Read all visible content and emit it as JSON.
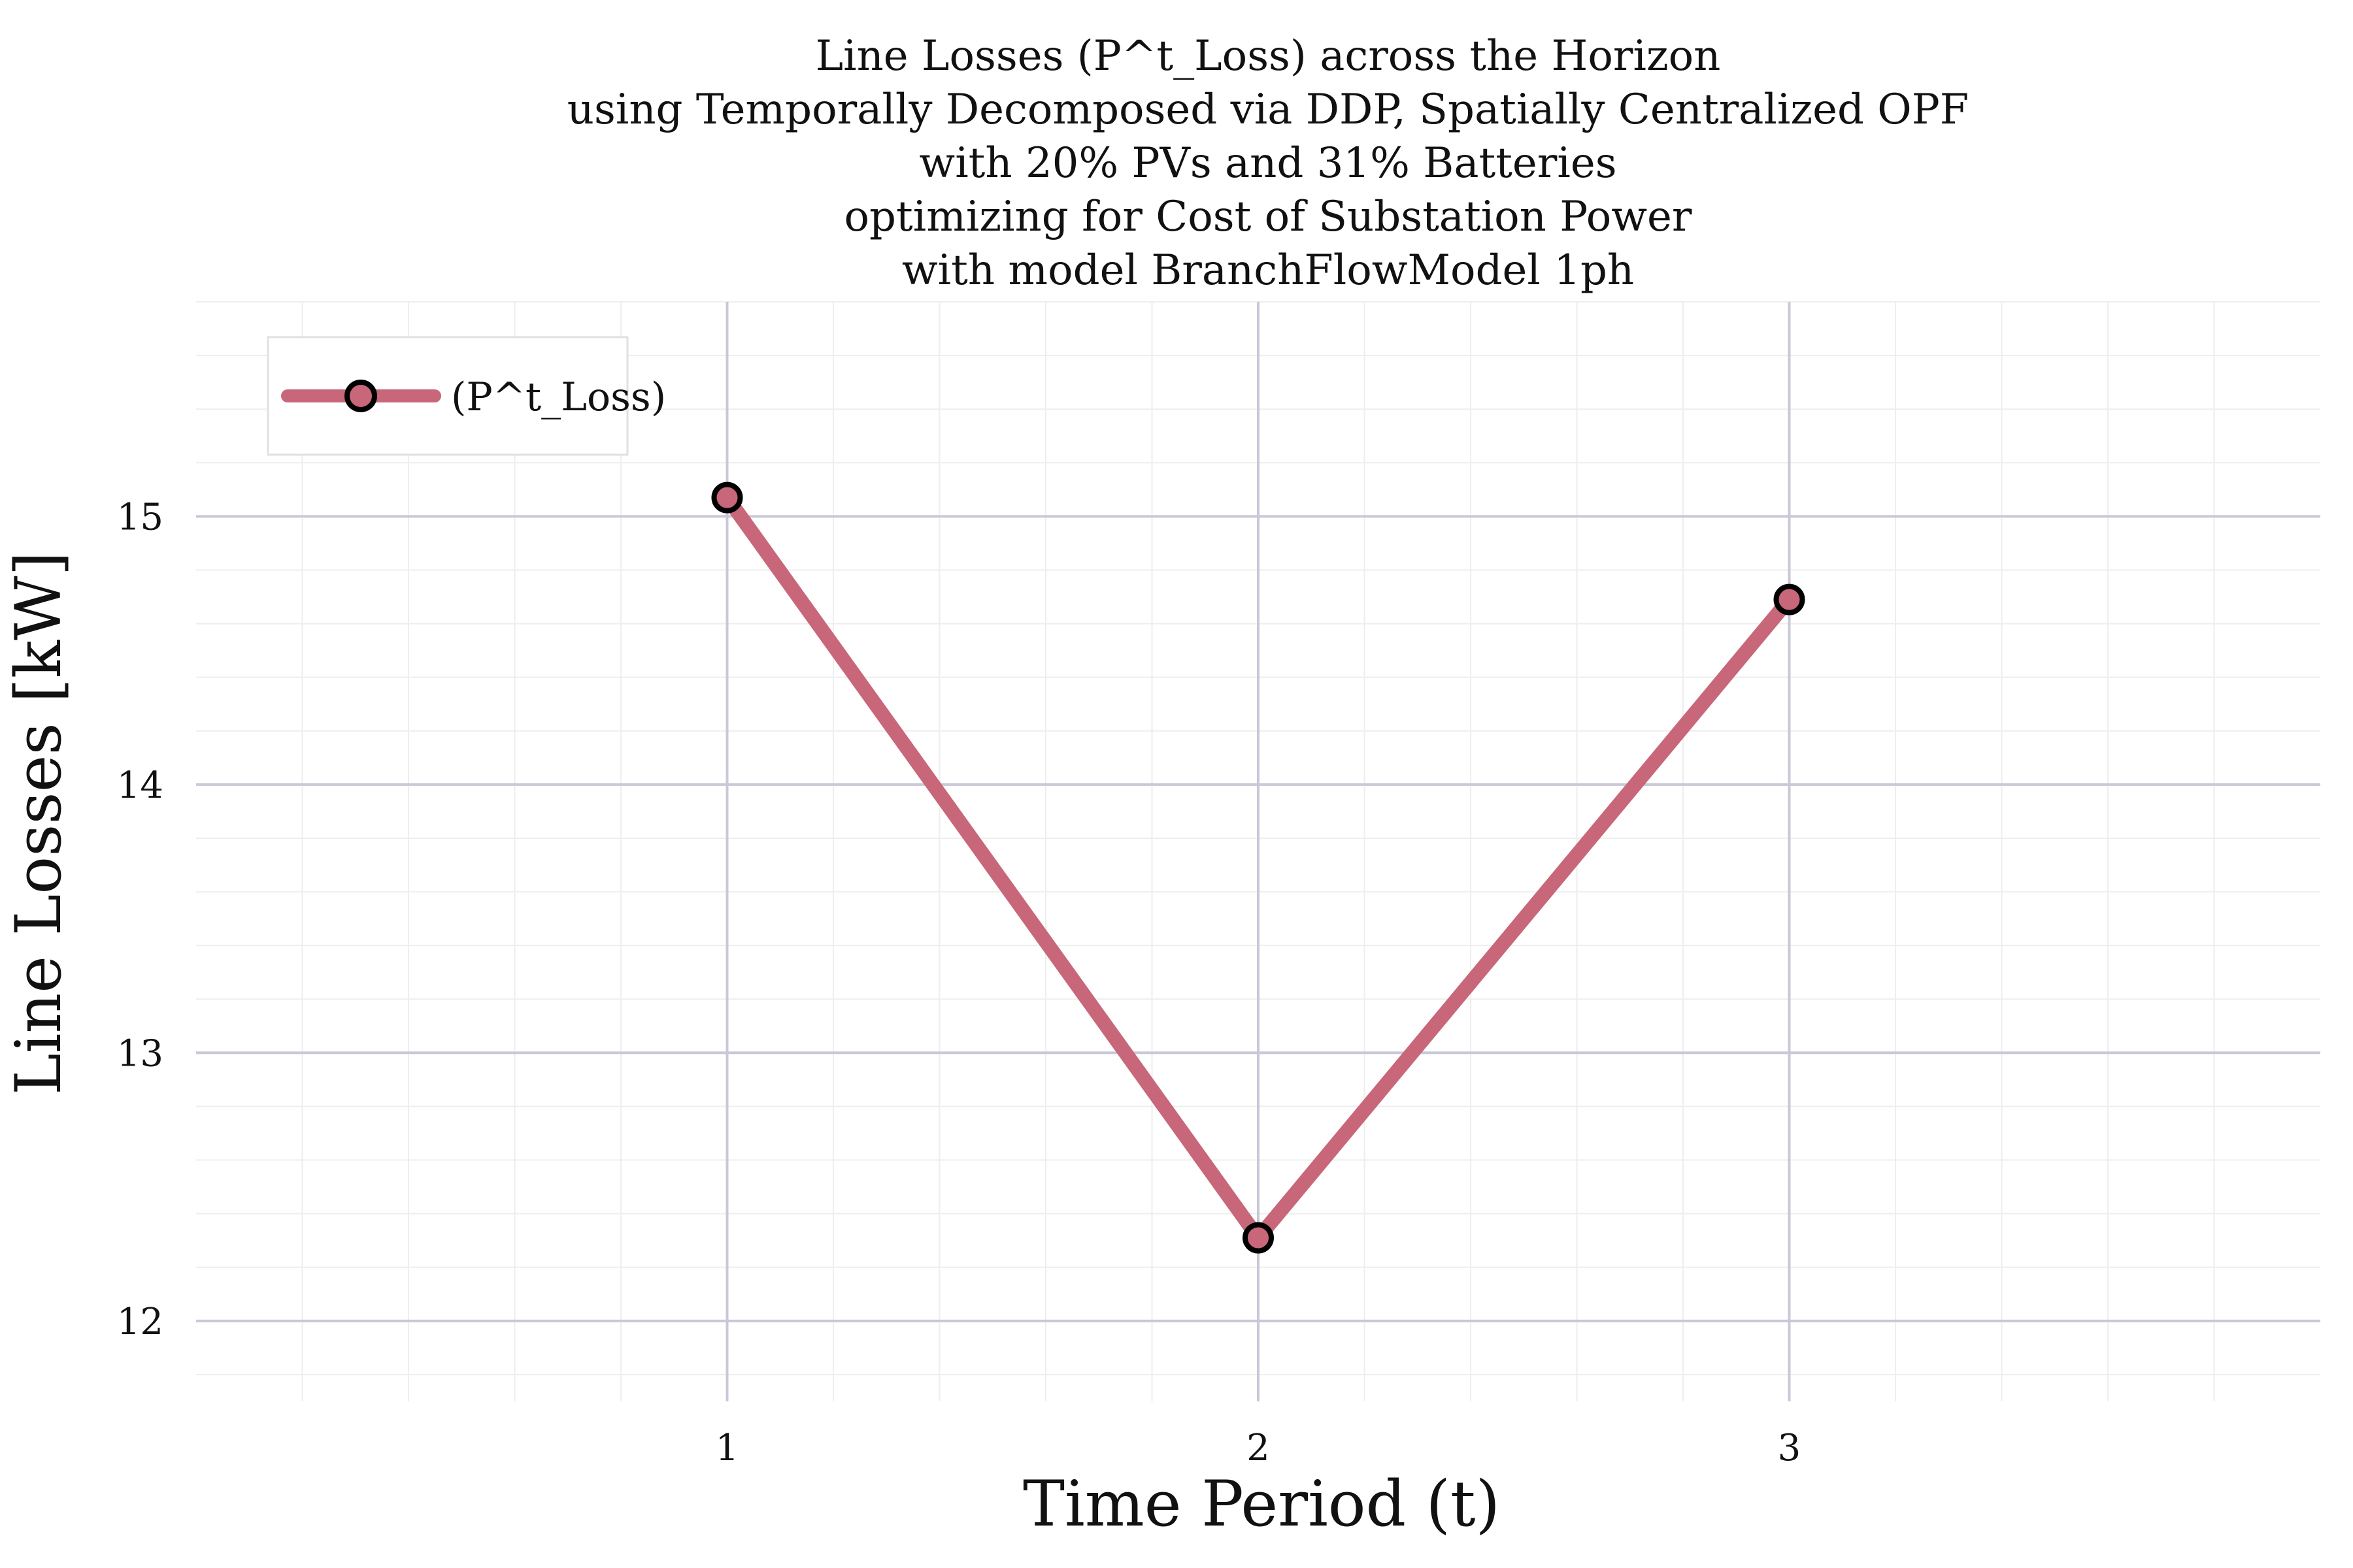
{
  "chart_data": {
    "type": "line",
    "title_lines": [
      "Line Losses (P^t_Loss) across the Horizon",
      "using Temporally Decomposed via DDP, Spatially Centralized OPF",
      "with 20% PVs and 31% Batteries",
      "optimizing for Cost of Substation Power",
      "with model BranchFlowModel 1ph"
    ],
    "xlabel": "Time Period (t)",
    "ylabel": "Line Losses [kW]",
    "x": [
      1,
      2,
      3
    ],
    "series": [
      {
        "name": "(P^t_Loss)",
        "values": [
          15.07,
          12.31,
          14.69
        ],
        "color": "#c8677a"
      }
    ],
    "xlim": [
      0,
      4
    ],
    "ylim": [
      11.7,
      15.8
    ],
    "xticks": [
      "1",
      "2",
      "3"
    ],
    "yticks": [
      "12",
      "13",
      "14",
      "15"
    ],
    "grid": true,
    "legend_position": "top-left",
    "colors": {
      "line": "#c8677a",
      "marker_edge": "#000000",
      "major_grid": "#c8c8d8",
      "minor_grid": "#eeeeee"
    }
  }
}
